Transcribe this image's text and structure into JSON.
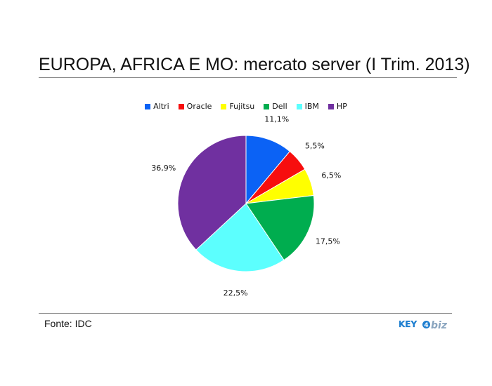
{
  "chart_data": {
    "type": "pie",
    "title": "EUROPA, AFRICA E MO: mercato server (I Trim. 2013)",
    "categories": [
      "Altri",
      "Oracle",
      "Fujitsu",
      "Dell",
      "IBM",
      "HP"
    ],
    "values": [
      11.1,
      5.5,
      6.5,
      17.5,
      22.5,
      36.9
    ],
    "value_labels": [
      "11,1%",
      "5,5%",
      "6,5%",
      "17,5%",
      "22,5%",
      "36,9%"
    ],
    "colors": [
      "#0b62f5",
      "#f70e0e",
      "#ffff00",
      "#00ad4f",
      "#5cfffe",
      "#7030a0"
    ],
    "legend_position": "top"
  },
  "source": "Fonte: IDC",
  "logo": {
    "text_left": "KEY",
    "text_right": "biz",
    "color_primary": "#1f7fd0",
    "color_secondary": "#8aa5bf"
  }
}
